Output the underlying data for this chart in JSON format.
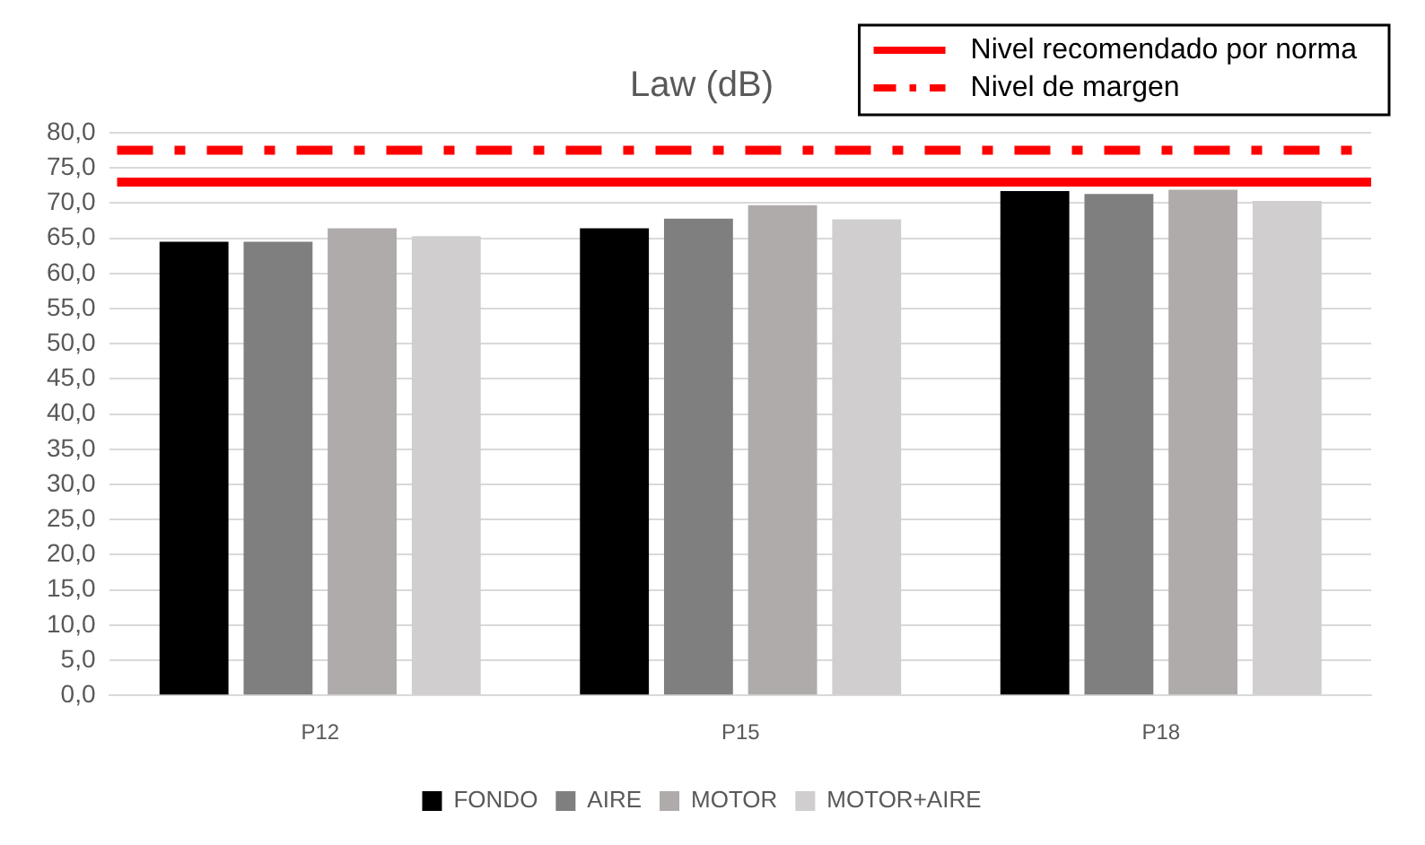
{
  "chart_data": {
    "type": "bar",
    "title": "Law (dB)",
    "categories": [
      "P12",
      "P15",
      "P18"
    ],
    "series": [
      {
        "name": "FONDO",
        "color": "#000000",
        "values": [
          64.5,
          66.4,
          71.7
        ]
      },
      {
        "name": "AIRE",
        "color": "#7f7f7f",
        "values": [
          64.5,
          67.8,
          71.3
        ]
      },
      {
        "name": "MOTOR",
        "color": "#afabab",
        "values": [
          66.4,
          69.7,
          71.9
        ]
      },
      {
        "name": "MOTOR+AIRE",
        "color": "#d0cece",
        "values": [
          65.3,
          67.7,
          70.3
        ]
      }
    ],
    "ylim": [
      0,
      80
    ],
    "yticks": [
      {
        "value": 0,
        "label": "0,0"
      },
      {
        "value": 5,
        "label": "5,0"
      },
      {
        "value": 10,
        "label": "10,0"
      },
      {
        "value": 15,
        "label": "15,0"
      },
      {
        "value": 20,
        "label": "20,0"
      },
      {
        "value": 25,
        "label": "25,0"
      },
      {
        "value": 30,
        "label": "30,0"
      },
      {
        "value": 35,
        "label": "35,0"
      },
      {
        "value": 40,
        "label": "40,0"
      },
      {
        "value": 45,
        "label": "45,0"
      },
      {
        "value": 50,
        "label": "50,0"
      },
      {
        "value": 55,
        "label": "55,0"
      },
      {
        "value": 60,
        "label": "60,0"
      },
      {
        "value": 65,
        "label": "65,0"
      },
      {
        "value": 70,
        "label": "70,0"
      },
      {
        "value": 75,
        "label": "75,0"
      },
      {
        "value": 80,
        "label": "80,0"
      }
    ],
    "ref_lines": [
      {
        "axis": "y",
        "value": 73,
        "label": "Nivel recomendado por norma",
        "color": "#ff0000",
        "line_style": "solid"
      },
      {
        "axis": "y",
        "value": 77.5,
        "label": "Nivel de margen",
        "color": "#ff0000",
        "line_style": "dashdot"
      }
    ],
    "grid": "y",
    "legend": "bottom"
  }
}
